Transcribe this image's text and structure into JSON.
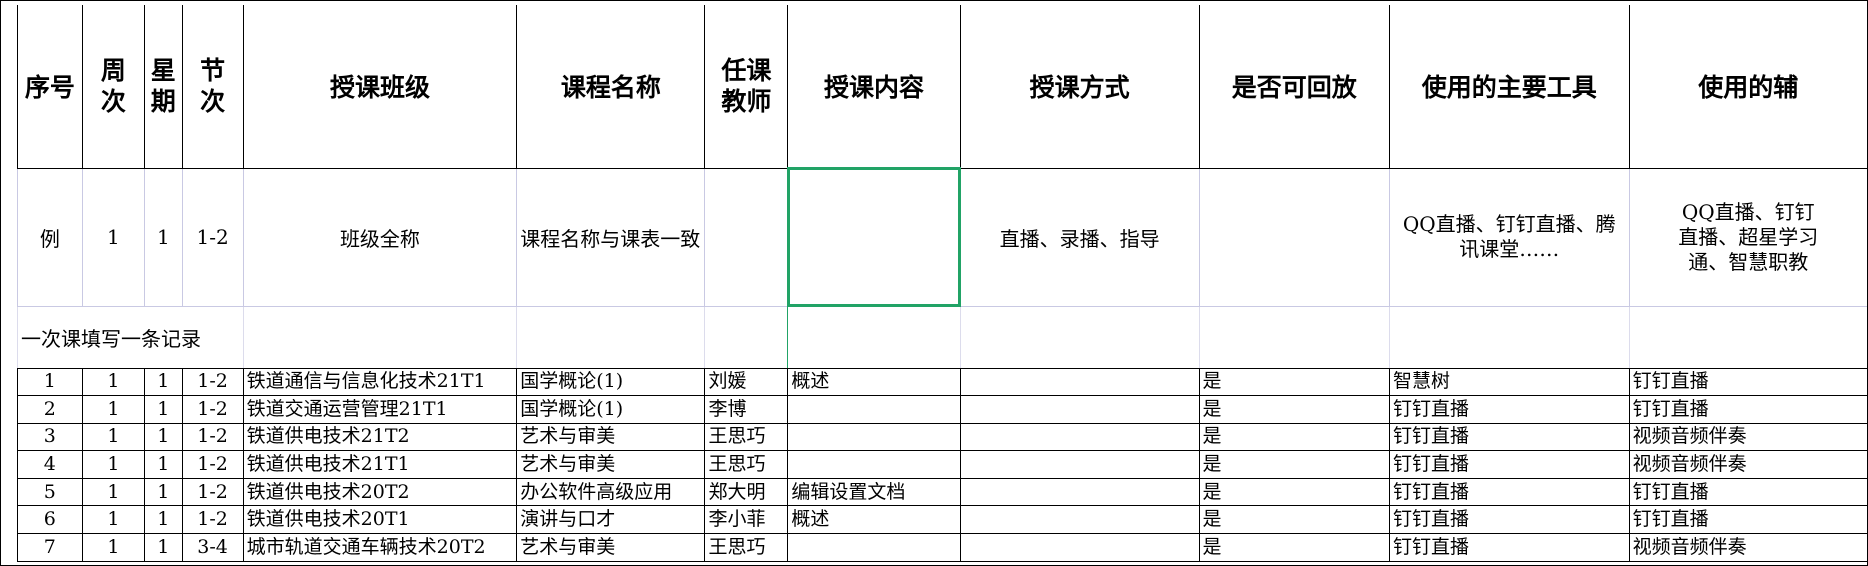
{
  "table": {
    "header": [
      "序号",
      "周次",
      "星期",
      "节次",
      "授课班级",
      "课程名称",
      "任课教师",
      "授课内容",
      "授课方式",
      "是否可回放",
      "使用的主要工具",
      "使用的辅"
    ],
    "example": [
      "例",
      "1",
      "1",
      "1-2",
      "班级全称",
      "课程名称与课表一致",
      "",
      "",
      "直播、录播、指导",
      "",
      "QQ直播、钉钉直播、腾讯课堂……",
      "QQ直播、钉钉直播、超星学习通、智慧职教"
    ],
    "note": "一次课填写一条记录",
    "rows": [
      [
        "1",
        "1",
        "1",
        "1-2",
        "铁道通信与信息化技术21T1",
        "国学概论(1)",
        "刘媛",
        "概述",
        "",
        "是",
        "智慧树",
        "钉钉直播"
      ],
      [
        "2",
        "1",
        "1",
        "1-2",
        "铁道交通运营管理21T1",
        "国学概论(1)",
        "李博",
        "",
        "",
        "是",
        "钉钉直播",
        "钉钉直播"
      ],
      [
        "3",
        "1",
        "1",
        "1-2",
        "铁道供电技术21T2",
        "艺术与审美",
        "王思巧",
        "",
        "",
        "是",
        "钉钉直播",
        "视频音频伴奏"
      ],
      [
        "4",
        "1",
        "1",
        "1-2",
        "铁道供电技术21T1",
        "艺术与审美",
        "王思巧",
        "",
        "",
        "是",
        "钉钉直播",
        "视频音频伴奏"
      ],
      [
        "5",
        "1",
        "1",
        "1-2",
        "铁道供电技术20T2",
        "办公软件高级应用",
        "郑大明",
        "编辑设置文档",
        "",
        "是",
        "钉钉直播",
        "钉钉直播"
      ],
      [
        "6",
        "1",
        "1",
        "1-2",
        "铁道供电技术20T1",
        "演讲与口才",
        "李小菲",
        "概述",
        "",
        "是",
        "钉钉直播",
        "钉钉直播"
      ],
      [
        "7",
        "1",
        "1",
        "3-4",
        "城市轨道交通车辆技术20T2",
        "艺术与审美",
        "王思巧",
        "",
        "",
        "是",
        "钉钉直播",
        "视频音频伴奏"
      ]
    ]
  }
}
